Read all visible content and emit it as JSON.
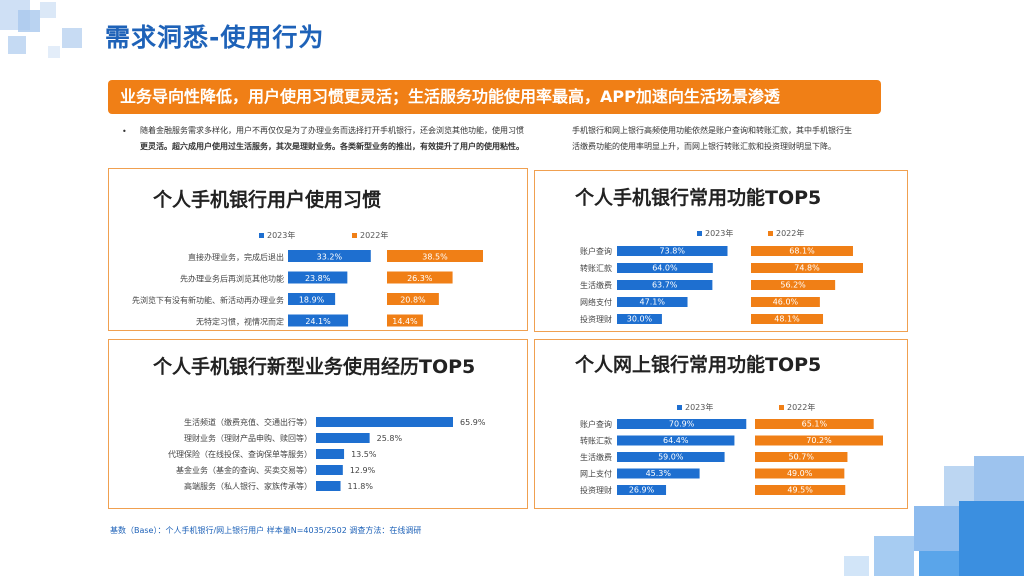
{
  "header": {
    "title": "需求洞悉-使用行为",
    "banner": "业务导向性降低，用户使用习惯更灵活；生活服务功能使用率最高，APP加速向生活场景渗透"
  },
  "summary": {
    "bullet": "•",
    "left_line1": "随着金融服务需求多样化，用户不再仅仅是为了办理业务而选择打开手机银行，还会浏览其他功能，使用习惯",
    "left_line2": "更灵活。超六成用户使用过生活服务，其次是理财业务。各类新型业务的推出，有效提升了用户的使用粘性。",
    "right_line1": "手机银行和网上银行高频使用功能依然是账户查询和转账汇款，其中手机银行生",
    "right_line2": "活缴费功能的使用率明显上升，而网上银行转账汇款和投资理财明显下降。"
  },
  "colors": {
    "blue": "#1e6fd0",
    "orange": "#f07f16",
    "panel_border": "#f0a050"
  },
  "footer": "基数（Base）：个人手机银行/网上银行用户  样本量N=4035/2502  调查方法：在线调研",
  "chart_data": [
    {
      "id": "habit",
      "type": "bar",
      "title": "个人手机银行用户使用习惯",
      "categories": [
        "直接办理业务，完成后退出",
        "先办理业务后再浏览其他功能",
        "先浏览下有没有新功能、新活动再办理业务",
        "无特定习惯，视情况而定"
      ],
      "series": [
        {
          "name": "2023年",
          "values": [
            33.2,
            23.8,
            18.9,
            24.1
          ]
        },
        {
          "name": "2022年",
          "values": [
            38.5,
            26.3,
            20.8,
            14.4
          ]
        }
      ],
      "legend": "top"
    },
    {
      "id": "mobile_top5",
      "type": "bar",
      "title": "个人手机银行常用功能TOP5",
      "categories": [
        "账户查询",
        "转账汇款",
        "生活缴费",
        "网络支付",
        "投资理财"
      ],
      "series": [
        {
          "name": "2023年",
          "values": [
            73.8,
            64.0,
            63.7,
            47.1,
            30.0
          ]
        },
        {
          "name": "2022年",
          "values": [
            68.1,
            74.8,
            56.2,
            46.0,
            48.1
          ]
        }
      ],
      "legend": "top"
    },
    {
      "id": "new_business",
      "type": "bar",
      "title": "个人手机银行新型业务使用经历TOP5",
      "categories": [
        "生活频道（缴费充值、交通出行等）",
        "理财业务（理财产品申购、赎回等）",
        "代理保险（在线投保、查询保单等服务）",
        "基金业务（基金的查询、买卖交易等）",
        "高端服务（私人银行、家族传承等）"
      ],
      "series": [
        {
          "name": "",
          "values": [
            65.9,
            25.8,
            13.5,
            12.9,
            11.8
          ]
        }
      ]
    },
    {
      "id": "online_top5",
      "type": "bar",
      "title": "个人网上银行常用功能TOP5",
      "categories": [
        "账户查询",
        "转账汇款",
        "生活缴费",
        "网上支付",
        "投资理财"
      ],
      "series": [
        {
          "name": "2023年",
          "values": [
            70.9,
            64.4,
            59.0,
            45.3,
            26.9
          ]
        },
        {
          "name": "2022年",
          "values": [
            65.1,
            70.2,
            50.7,
            49.0,
            49.5
          ]
        }
      ],
      "legend": "top"
    }
  ]
}
